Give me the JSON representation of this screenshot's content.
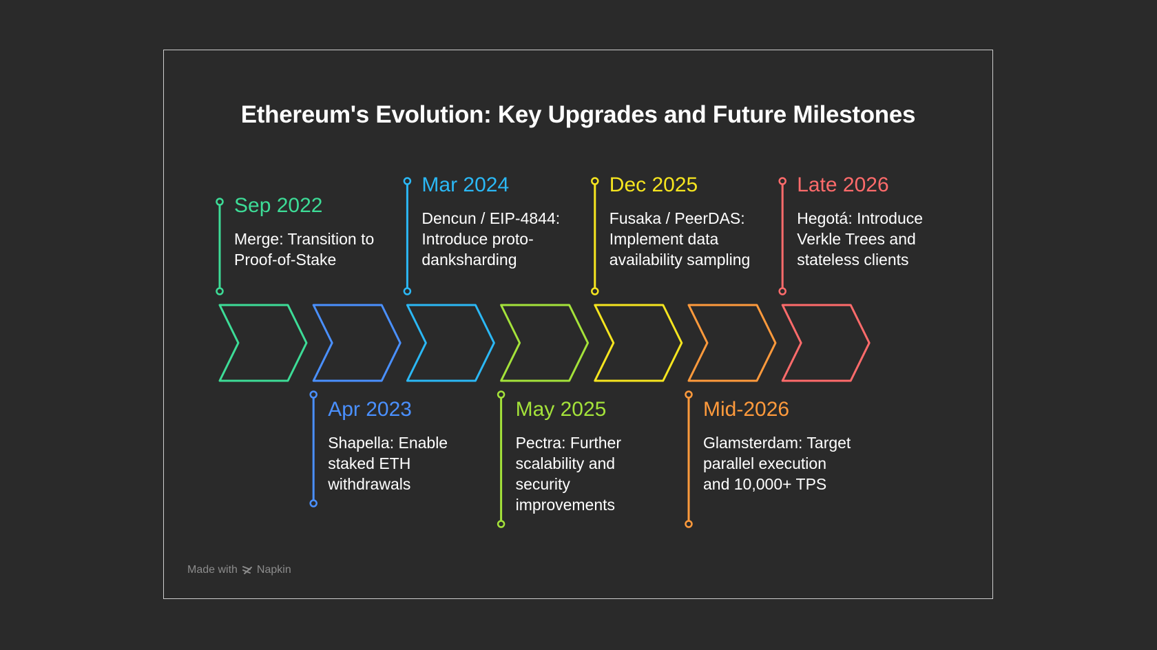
{
  "title": "Ethereum's Evolution: Key Upgrades and Future Milestones",
  "milestones": [
    {
      "date": "Sep 2022",
      "desc": "Merge: Transition to Proof-of-Stake",
      "color": "#3ddc97",
      "side": "top"
    },
    {
      "date": "Apr 2023",
      "desc": "Shapella: Enable staked ETH withdrawals",
      "color": "#4a90ff",
      "side": "bottom"
    },
    {
      "date": "Mar 2024",
      "desc": "Dencun / EIP-4844: Introduce proto-danksharding",
      "color": "#2bb8f5",
      "side": "top"
    },
    {
      "date": "May 2025",
      "desc": "Pectra: Further scalability and security improvements",
      "color": "#a4e23a",
      "side": "bottom"
    },
    {
      "date": "Dec 2025",
      "desc": "Fusaka / PeerDAS: Implement data availability sampling",
      "color": "#f6e51f",
      "side": "top"
    },
    {
      "date": "Mid-2026",
      "desc": "Glamsterdam: Target parallel execution and 10,000+ TPS",
      "color": "#ff9a3c",
      "side": "bottom"
    },
    {
      "date": "Late 2026",
      "desc": "Hegotá: Introduce Verkle Trees and stateless clients",
      "color": "#ff6b6b",
      "side": "top"
    }
  ],
  "credit": {
    "prefix": "Made with",
    "brand": "Napkin",
    "icon": "napkin-logo-icon"
  }
}
